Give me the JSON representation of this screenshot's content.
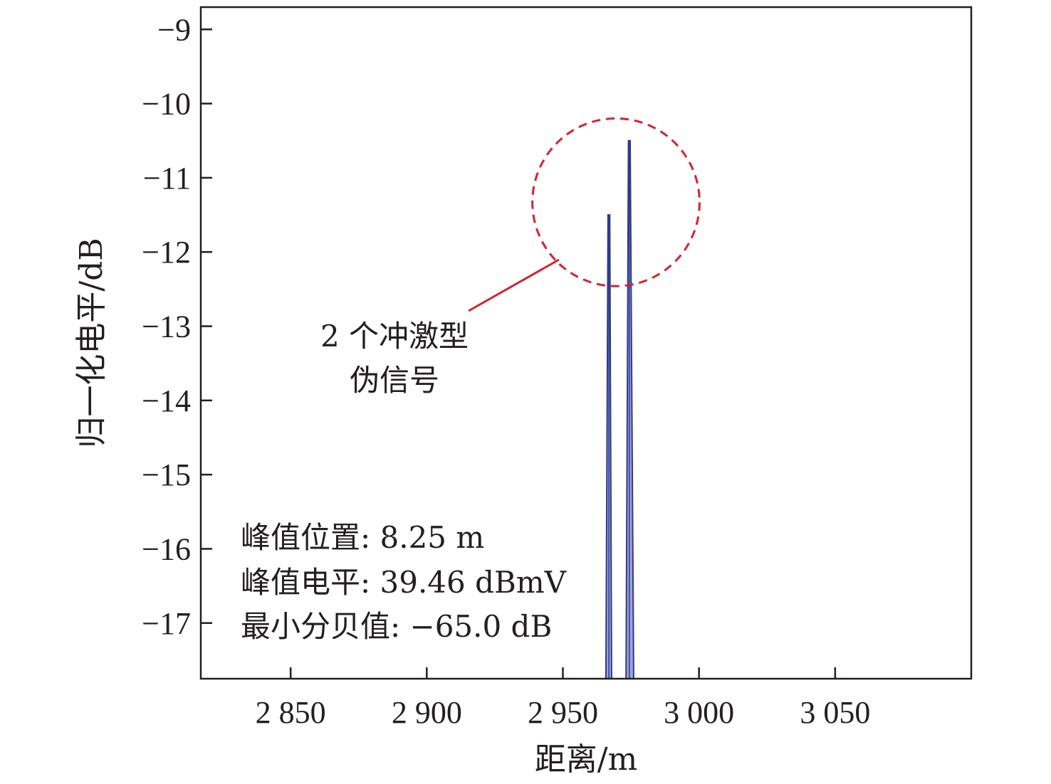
{
  "chart_data": {
    "type": "line",
    "title": "",
    "xlabel": "距离/m",
    "ylabel": "归一化电平/dB",
    "xlim": [
      2817,
      3100
    ],
    "ylim": [
      -17.75,
      -8.7
    ],
    "x_ticks": [
      2850,
      2900,
      2950,
      3000,
      3050
    ],
    "x_tick_labels": [
      "2 850",
      "2 900",
      "2 950",
      "3 000",
      "3 050"
    ],
    "y_ticks": [
      -9,
      -10,
      -11,
      -12,
      -13,
      -14,
      -15,
      -16,
      -17
    ],
    "y_tick_labels": [
      "−9",
      "−10",
      "−11",
      "−12",
      "−13",
      "−14",
      "−15",
      "−16",
      "−17"
    ],
    "grid": false,
    "series": [
      {
        "color": "#2e3a8c",
        "points": [
          {
            "x": 2965.8,
            "y": -17.75
          },
          {
            "x": 2966.9,
            "y": -11.5
          },
          {
            "x": 2967.9,
            "y": -17.75
          },
          {
            "x": 2973.2,
            "y": -17.75
          },
          {
            "x": 2974.4,
            "y": -10.5
          },
          {
            "x": 2976.0,
            "y": -17.75
          }
        ]
      }
    ],
    "annotation": {
      "label_lines": [
        "2 个冲激型",
        "伪信号"
      ],
      "color": "#d9202e",
      "circle_center": {
        "x": 2969.5,
        "y": -11.33
      },
      "circle_rx": 30.7,
      "circle_ry": 1.13
    },
    "info_lines": [
      "峰值位置: 8.25 m",
      "峰值电平: 39.46 dBmV",
      "最小分贝值: −65.0 dB"
    ]
  }
}
